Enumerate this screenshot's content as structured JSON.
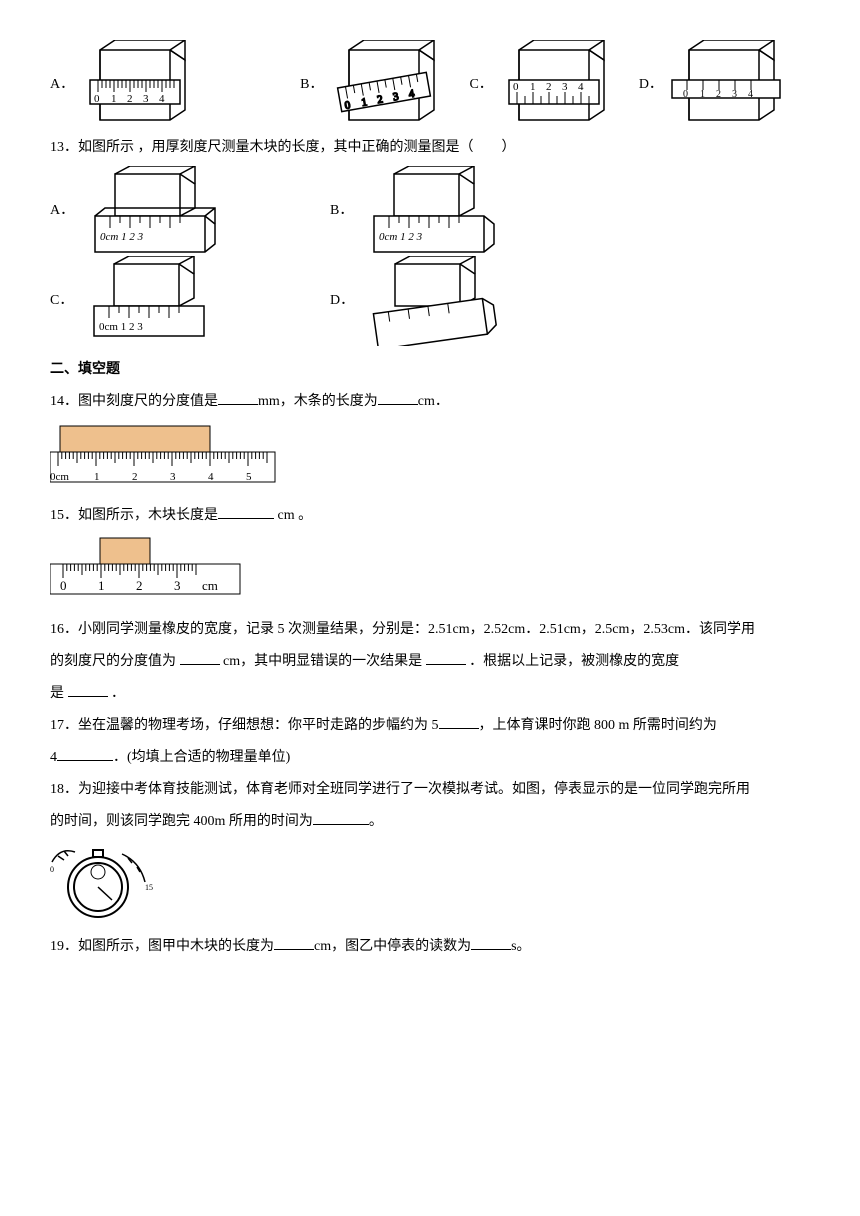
{
  "q12": {
    "opts": {
      "a": "A．",
      "b": "B．",
      "c": "C．",
      "d": "D．"
    },
    "ruler_labels": [
      "0",
      "1",
      "2",
      "3",
      "4"
    ],
    "block_fill": "#ffffff",
    "stroke": "#000000"
  },
  "q13": {
    "text": "13．如图所示 ，用厚刻度尺测量木块的长度，其中正确的测量图是（　　）",
    "opts": {
      "a": "A．",
      "b": "B．",
      "c": "C．",
      "d": "D．"
    },
    "ruler_text_a": "0cm 1   2   3",
    "ruler_text_c": "0cm 1   2   3",
    "stroke": "#000000"
  },
  "section2": "二、填空题",
  "q14": {
    "t1": "14．图中刻度尺的分度值是",
    "u1": "mm，木条的长度为",
    "u2": "cm．",
    "labels": [
      "0cm",
      "1",
      "2",
      "3",
      "4",
      "5"
    ],
    "bar_fill": "#eec08d",
    "stroke": "#000000",
    "font_size": 12
  },
  "q15": {
    "t1": "15．如图所示，木块长度是",
    "t2": " cm 。",
    "labels": [
      "0",
      "1",
      "2",
      "3",
      "cm"
    ],
    "bar_fill": "#eec08d",
    "stroke": "#000000",
    "font_size": 14
  },
  "q16": {
    "l1": "16．小刚同学测量橡皮的宽度，记录 5 次测量结果，分别是：2.51cm，2.52cm．2.51cm，2.5cm，2.53cm．该同学用",
    "l2a": "的刻度尺的分度值为 ",
    "l2b": " cm，其中明显错误的一次结果是 ",
    "l2c": " ．根据以上记录，被测橡皮的宽度",
    "l3a": "是 ",
    "l3b": " ．"
  },
  "q17": {
    "l1a": "17．坐在温馨的物理考场，仔细想想：你平时走路的步幅约为 5",
    "l1b": "，上体育课时你跑 800 m 所需时间约为",
    "l2a": "4",
    "l2b": "．(均填上合适的物理量单位)"
  },
  "q18": {
    "l1": "18．为迎接中考体育技能测试，体育老师对全班同学进行了一次模拟考试。如图，停表显示的是一位同学跑完所用",
    "l2a": "的时间，则该同学跑完 400m 所用的时间为",
    "l2b": "。",
    "stroke": "#000000"
  },
  "q19": {
    "t1": "19．如图所示，图甲中木块的长度为",
    "t2": "cm，图乙中停表的读数为",
    "t3": "s。"
  }
}
